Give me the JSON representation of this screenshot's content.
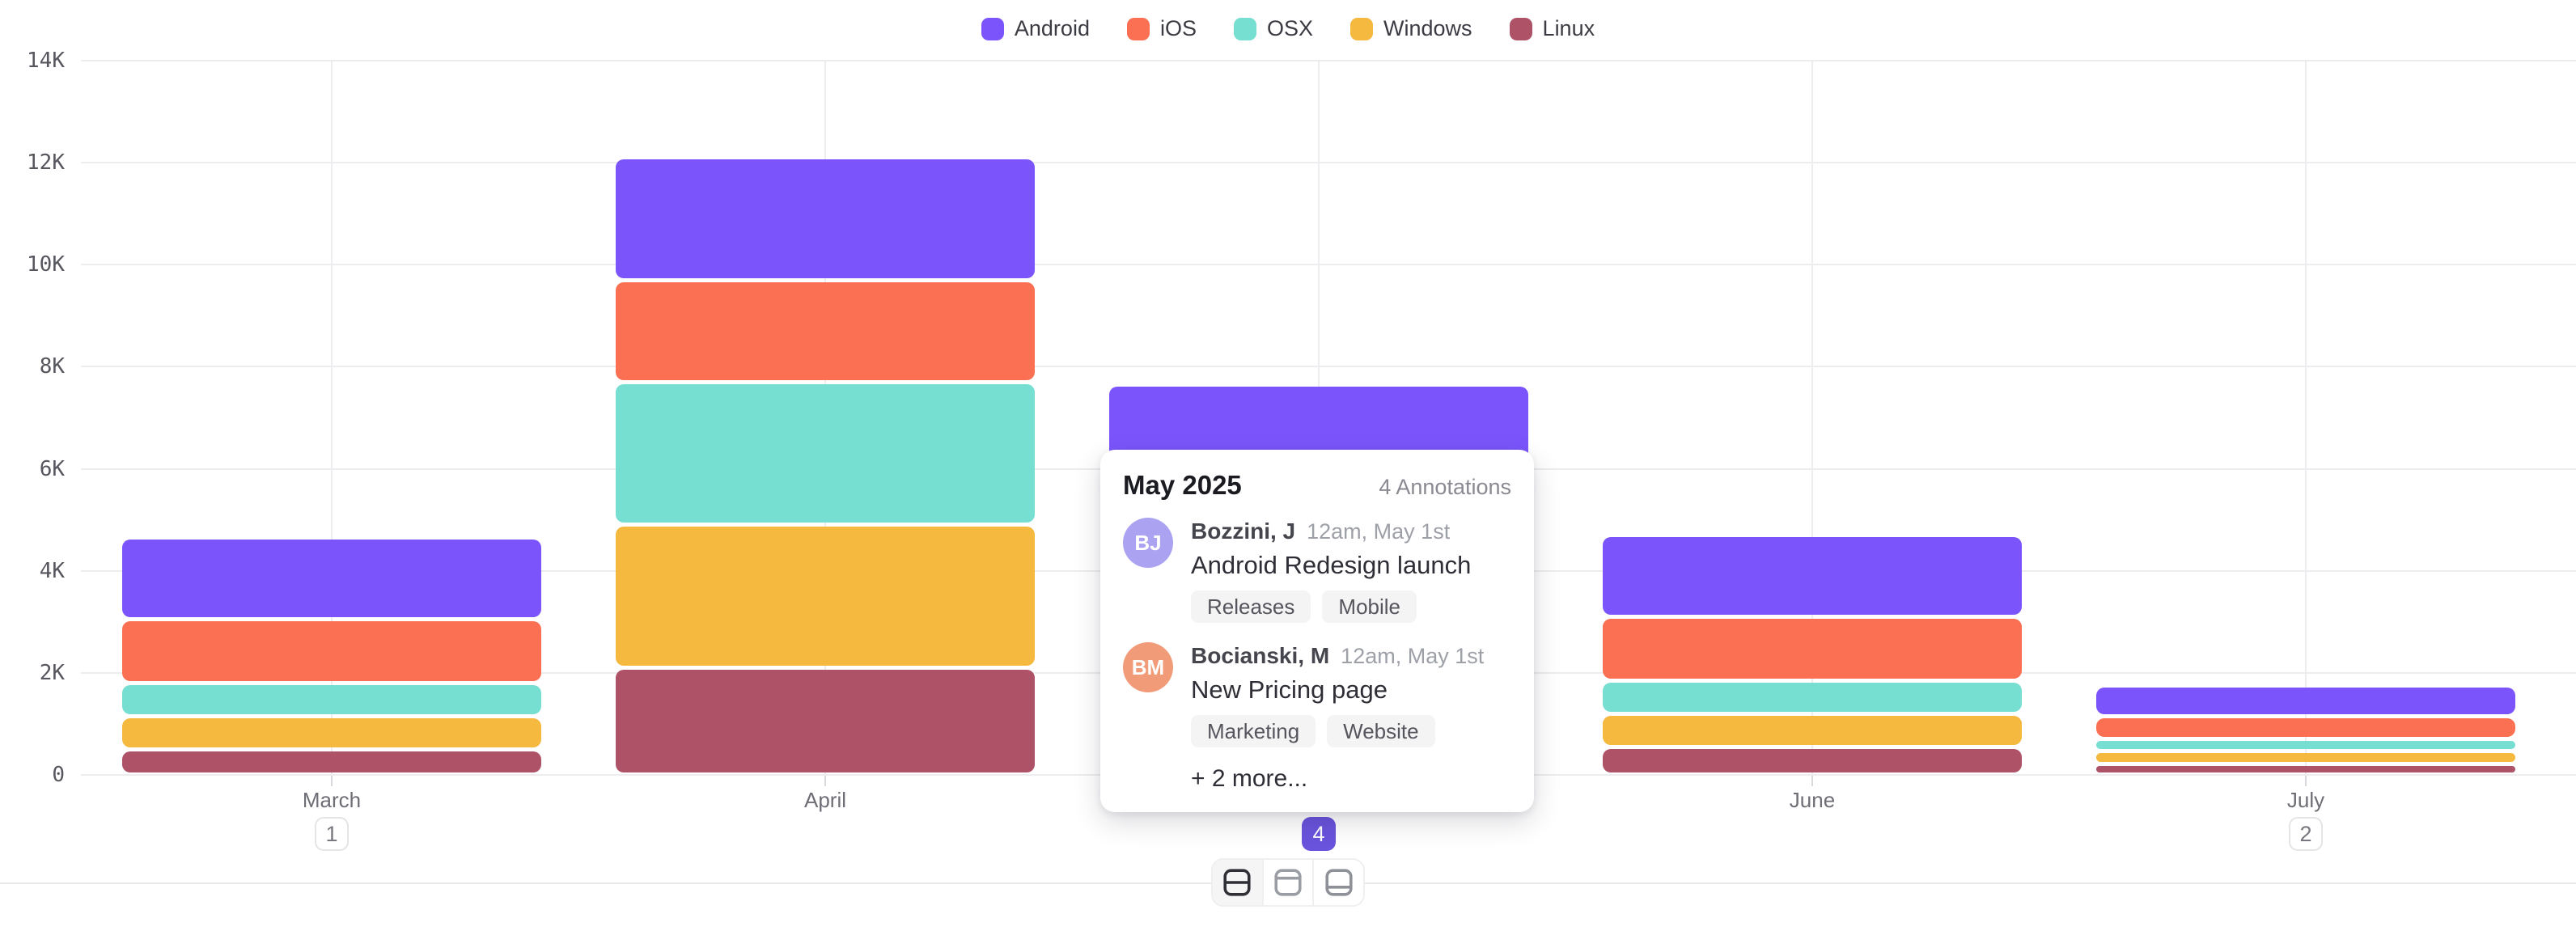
{
  "legend": {
    "items": [
      {
        "label": "Android",
        "color": "#7B55FB"
      },
      {
        "label": "iOS",
        "color": "#FB7053"
      },
      {
        "label": "OSX",
        "color": "#76DFD2"
      },
      {
        "label": "Windows",
        "color": "#F5B93F"
      },
      {
        "label": "Linux",
        "color": "#AD5267"
      }
    ]
  },
  "chart_data": {
    "type": "bar",
    "stacked": true,
    "title": "",
    "xlabel": "",
    "ylabel": "",
    "categories": [
      "March",
      "April",
      "May",
      "June",
      "July"
    ],
    "series": [
      {
        "name": "Android",
        "color": "#7B55FB",
        "values": [
          1600,
          2400,
          1700,
          1600,
          600
        ]
      },
      {
        "name": "iOS",
        "color": "#FB7053",
        "values": [
          1250,
          2000,
          1600,
          1250,
          450
        ]
      },
      {
        "name": "OSX",
        "color": "#76DFD2",
        "values": [
          650,
          2800,
          1600,
          650,
          240
        ]
      },
      {
        "name": "Windows",
        "color": "#F5B93F",
        "values": [
          650,
          2800,
          1500,
          650,
          240
        ]
      },
      {
        "name": "Linux",
        "color": "#AD5267",
        "values": [
          500,
          2100,
          1250,
          550,
          220
        ]
      }
    ],
    "ylim": [
      0,
      14000
    ],
    "yticks": [
      {
        "value": 0,
        "label": "0"
      },
      {
        "value": 2000,
        "label": "2K"
      },
      {
        "value": 4000,
        "label": "4K"
      },
      {
        "value": 6000,
        "label": "6K"
      },
      {
        "value": 8000,
        "label": "8K"
      },
      {
        "value": 10000,
        "label": "10K"
      },
      {
        "value": 12000,
        "label": "12K"
      },
      {
        "value": 14000,
        "label": "14K"
      }
    ],
    "grid": "horizontal and vertical, light gray",
    "legend_position": "top-center",
    "annotation_badges": [
      {
        "category": "March",
        "count": "1",
        "variant": "outline"
      },
      {
        "category": "May",
        "count": "4",
        "variant": "filled"
      },
      {
        "category": "July",
        "count": "2",
        "variant": "outline"
      }
    ],
    "badge_accent_color": "#6A53DD"
  },
  "tooltip": {
    "title": "May 2025",
    "annotations_count": "4 Annotations",
    "items": [
      {
        "initials": "BJ",
        "avatar_color": "#ABA2F2",
        "author": "Bozzini, J",
        "time": "12am, May 1st",
        "title": "Android Redesign launch",
        "tags": [
          "Releases",
          "Mobile"
        ]
      },
      {
        "initials": "BM",
        "avatar_color": "#F19B78",
        "author": "Bocianski, M",
        "time": "12am, May 1st",
        "title": "New Pricing page",
        "tags": [
          "Marketing",
          "Website"
        ]
      }
    ],
    "more": "+ 2 more..."
  },
  "toolbar": {
    "buttons": [
      {
        "icon": "layout-split-rows-icon",
        "active": true
      },
      {
        "icon": "layout-top-panel-icon",
        "active": false
      },
      {
        "icon": "layout-bottom-panel-icon",
        "active": false
      }
    ]
  }
}
